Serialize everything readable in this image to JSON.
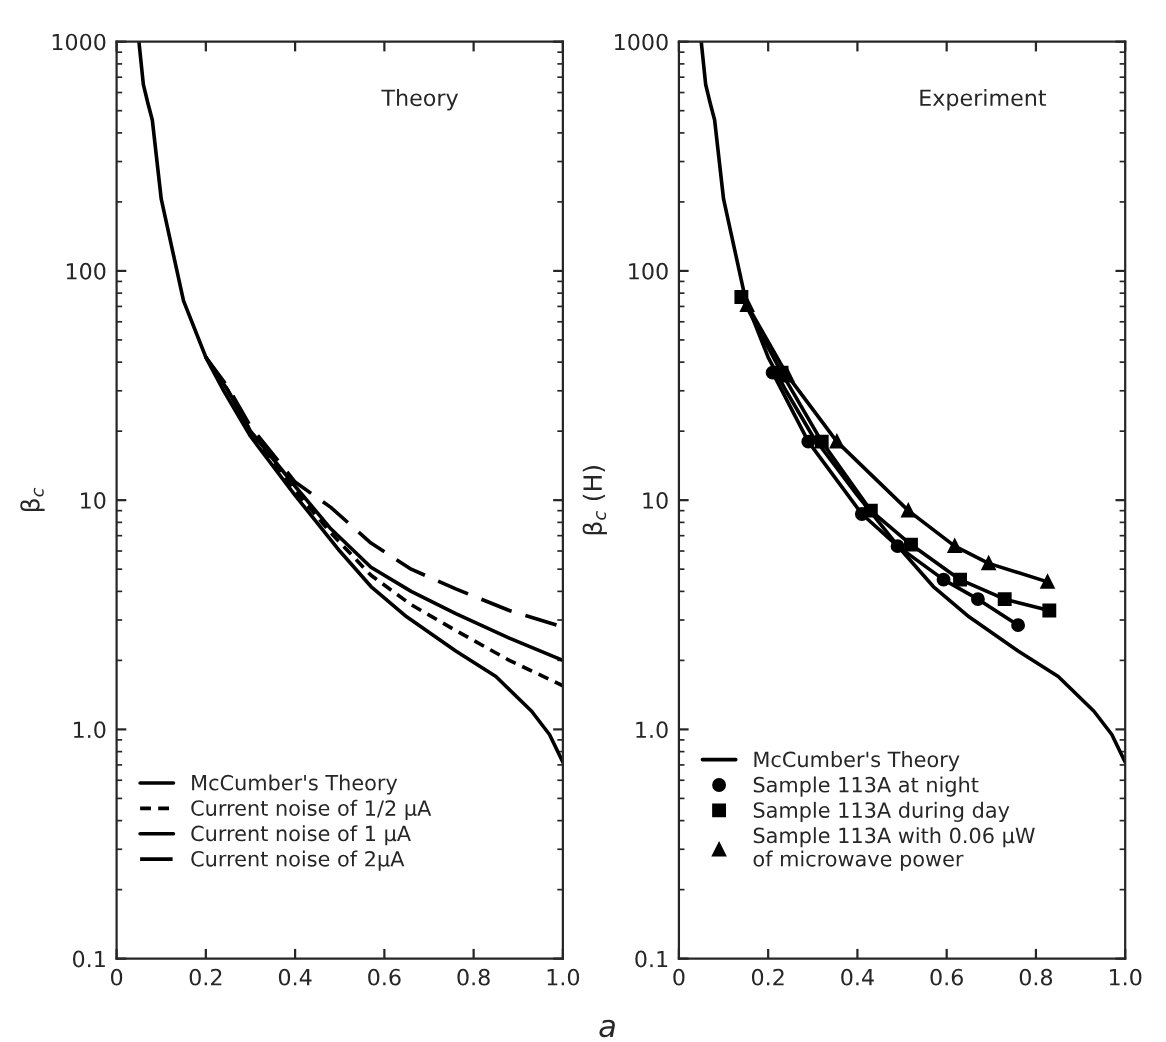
{
  "chart_data": [
    {
      "type": "line",
      "xlabel": "a",
      "ylabel": "β$_{c}$",
      "log": "y",
      "xlim": [
        0,
        1.0
      ],
      "ylim": [
        0.1,
        1000
      ],
      "xticks": [
        0,
        0.2,
        0.4,
        0.6,
        0.8,
        {
          "value": 1.0,
          "label": "1.0"
        }
      ],
      "yticks": [
        0.1,
        {
          "value": 1,
          "label": "1.0"
        },
        10,
        100,
        1000
      ],
      "grid": false,
      "legend": "bottom left",
      "annotations": [
        "Theory"
      ],
      "series": [
        {
          "name": "McCumber's Theory",
          "color": "#000000",
          "line_style": "solid",
          "x": [
            0.05,
            0.06,
            0.07,
            0.08,
            0.1,
            0.15,
            0.2,
            0.24,
            0.3,
            0.4,
            0.5,
            0.57,
            0.65,
            0.76,
            0.85,
            0.93,
            0.97,
            1.0
          ],
          "values": [
            1000,
            650,
            540,
            455,
            206,
            74,
            42,
            30,
            19,
            10.5,
            6.0,
            4.2,
            3.1,
            2.2,
            1.7,
            1.2,
            0.95,
            0.72
          ]
        },
        {
          "name": "Current noise of 1/2 μA",
          "color": "#000000",
          "line_style": "dotted",
          "x": [
            0.2,
            0.25,
            0.3,
            0.4,
            0.48,
            0.57,
            0.66,
            0.76,
            0.88,
            1.0
          ],
          "values": [
            42,
            30,
            20,
            11,
            7.2,
            4.7,
            3.5,
            2.7,
            2.0,
            1.55
          ]
        },
        {
          "name": "Current noise of 1 μA",
          "color": "#000000",
          "line_style": "solid",
          "x": [
            0.2,
            0.25,
            0.3,
            0.4,
            0.48,
            0.57,
            0.66,
            0.76,
            0.88,
            1.0
          ],
          "values": [
            42,
            30,
            20,
            11.5,
            7.5,
            5.1,
            4.0,
            3.2,
            2.5,
            2.0
          ]
        },
        {
          "name": "Current noise of 2μA",
          "color": "#000000",
          "line_style": "dashed",
          "x": [
            0.2,
            0.25,
            0.3,
            0.4,
            0.48,
            0.57,
            0.66,
            0.76,
            0.88,
            1.0
          ],
          "values": [
            42,
            31,
            21,
            12,
            9.3,
            6.5,
            5.0,
            4.1,
            3.3,
            2.8
          ]
        }
      ]
    },
    {
      "type": "line",
      "ylabel": "β$_{c}$ (H)",
      "log": "y",
      "xlim": [
        0,
        1.0
      ],
      "ylim": [
        0.1,
        1000
      ],
      "xticks": [
        0,
        0.2,
        0.4,
        0.6,
        0.8,
        {
          "value": 1.0,
          "label": "1.0"
        }
      ],
      "yticks": [
        0.1,
        {
          "value": 1,
          "label": "1.0"
        },
        10,
        100,
        1000
      ],
      "grid": false,
      "legend": "bottom left",
      "annotations": [
        "Experiment"
      ],
      "series": [
        {
          "name": "McCumber's Theory",
          "color": "#000000",
          "line_style": "solid",
          "marker": "none",
          "x": [
            0.05,
            0.06,
            0.07,
            0.08,
            0.1,
            0.15,
            0.2,
            0.24,
            0.3,
            0.4,
            0.5,
            0.57,
            0.65,
            0.76,
            0.85,
            0.93,
            0.97,
            1.0
          ],
          "values": [
            1000,
            650,
            540,
            455,
            206,
            74,
            42,
            30,
            19,
            10.5,
            6.0,
            4.2,
            3.1,
            2.2,
            1.7,
            1.2,
            0.95,
            0.72
          ]
        },
        {
          "name": "Sample 113A at night",
          "color": "#000000",
          "line_style": "solid",
          "marker": "circle",
          "x": [
            0.21,
            0.29,
            0.41,
            0.49,
            0.593,
            0.67,
            0.76
          ],
          "values": [
            36,
            18,
            8.7,
            6.3,
            4.5,
            3.7,
            2.85
          ]
        },
        {
          "name": "Sample 113A during day",
          "color": "#000000",
          "line_style": "solid",
          "marker": "square",
          "x": [
            0.14,
            0.23,
            0.32,
            0.43,
            0.52,
            0.63,
            0.73,
            0.83
          ],
          "values": [
            77,
            36,
            18,
            9,
            6.4,
            4.5,
            3.7,
            3.3
          ]
        },
        {
          "name": "Sample 113A with 0.06 μW\nof microwave power",
          "color": "#000000",
          "line_style": "solid",
          "marker": "triangle",
          "x": [
            0.153,
            0.243,
            0.354,
            0.514,
            0.618,
            0.694,
            0.826
          ],
          "values": [
            71,
            35,
            18,
            9.0,
            6.3,
            5.3,
            4.4
          ]
        }
      ]
    }
  ]
}
